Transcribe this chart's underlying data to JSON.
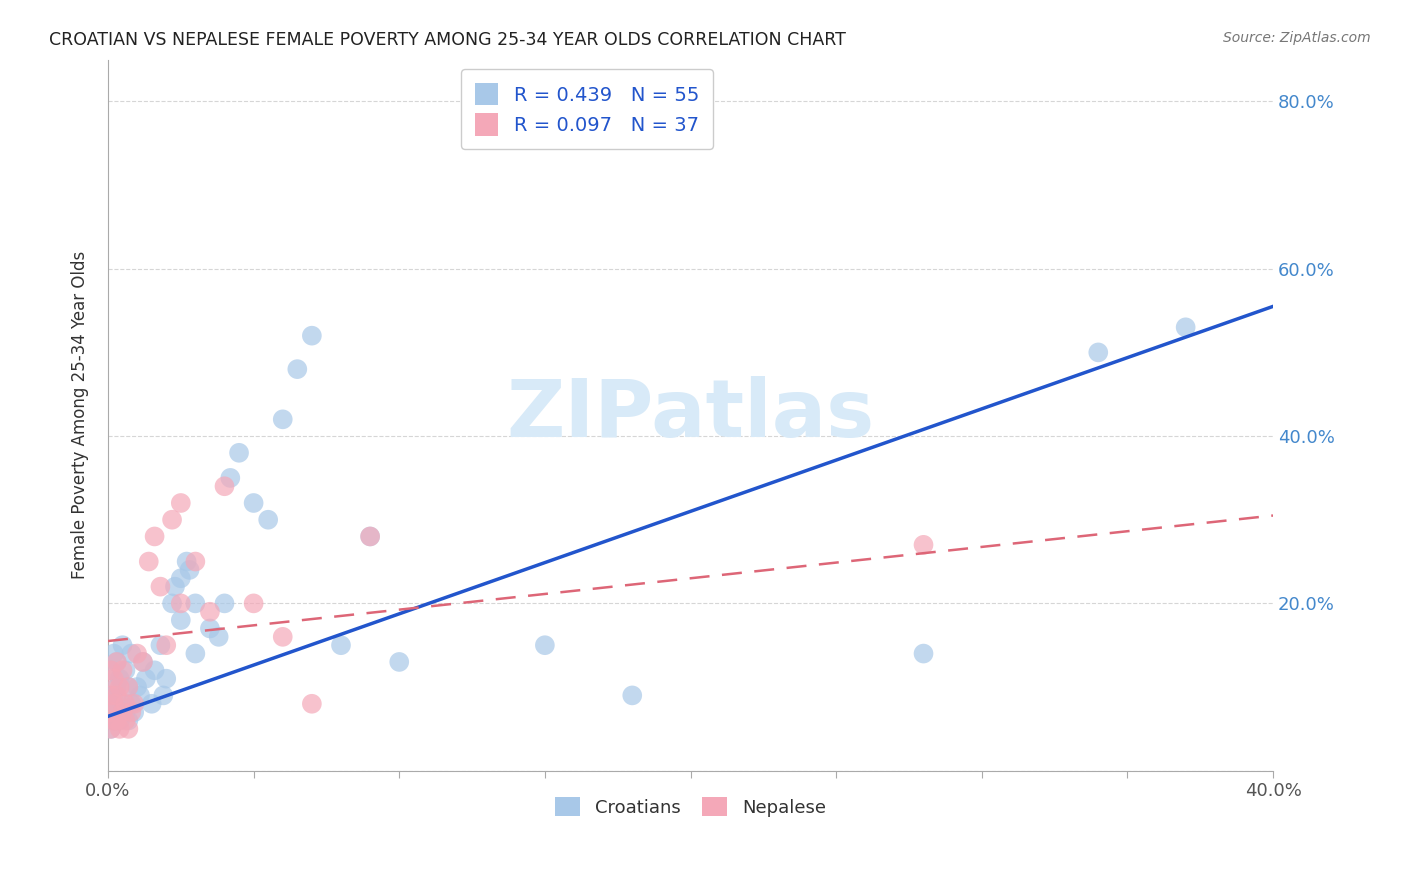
{
  "title": "CROATIAN VS NEPALESE FEMALE POVERTY AMONG 25-34 YEAR OLDS CORRELATION CHART",
  "source": "Source: ZipAtlas.com",
  "ylabel": "Female Poverty Among 25-34 Year Olds",
  "ytick_labels": [
    "",
    "20.0%",
    "40.0%",
    "60.0%",
    "80.0%"
  ],
  "yticks": [
    0.0,
    0.2,
    0.4,
    0.6,
    0.8
  ],
  "croatian_R": 0.439,
  "croatian_N": 55,
  "nepalese_R": 0.097,
  "nepalese_N": 37,
  "croatian_color": "#a8c8e8",
  "nepalese_color": "#f4a8b8",
  "trendline_croatian_color": "#2255cc",
  "trendline_nepalese_color": "#dd6677",
  "watermark_color": "#d8eaf8",
  "xmin": 0.0,
  "xmax": 0.4,
  "ymin": 0.0,
  "ymax": 0.85,
  "croatian_trend_x0": 0.0,
  "croatian_trend_y0": 0.065,
  "croatian_trend_x1": 0.4,
  "croatian_trend_y1": 0.555,
  "nepalese_trend_x0": 0.0,
  "nepalese_trend_y0": 0.155,
  "nepalese_trend_x1": 0.4,
  "nepalese_trend_y1": 0.305,
  "croatian_x": [
    0.001,
    0.001,
    0.001,
    0.002,
    0.002,
    0.002,
    0.003,
    0.003,
    0.003,
    0.004,
    0.004,
    0.005,
    0.005,
    0.006,
    0.006,
    0.007,
    0.007,
    0.008,
    0.008,
    0.009,
    0.01,
    0.011,
    0.012,
    0.013,
    0.015,
    0.016,
    0.018,
    0.019,
    0.02,
    0.022,
    0.023,
    0.025,
    0.025,
    0.027,
    0.028,
    0.03,
    0.03,
    0.035,
    0.038,
    0.04,
    0.042,
    0.045,
    0.05,
    0.055,
    0.06,
    0.065,
    0.07,
    0.08,
    0.09,
    0.1,
    0.15,
    0.18,
    0.28,
    0.34,
    0.37
  ],
  "croatian_y": [
    0.05,
    0.08,
    0.12,
    0.06,
    0.09,
    0.14,
    0.07,
    0.1,
    0.13,
    0.06,
    0.11,
    0.08,
    0.15,
    0.07,
    0.12,
    0.06,
    0.1,
    0.08,
    0.14,
    0.07,
    0.1,
    0.09,
    0.13,
    0.11,
    0.08,
    0.12,
    0.15,
    0.09,
    0.11,
    0.2,
    0.22,
    0.18,
    0.23,
    0.25,
    0.24,
    0.2,
    0.14,
    0.17,
    0.16,
    0.2,
    0.35,
    0.38,
    0.32,
    0.3,
    0.42,
    0.48,
    0.52,
    0.15,
    0.28,
    0.13,
    0.15,
    0.09,
    0.14,
    0.5,
    0.53
  ],
  "nepalese_x": [
    0.001,
    0.001,
    0.001,
    0.001,
    0.002,
    0.002,
    0.002,
    0.003,
    0.003,
    0.003,
    0.004,
    0.004,
    0.005,
    0.005,
    0.006,
    0.006,
    0.007,
    0.007,
    0.008,
    0.009,
    0.01,
    0.012,
    0.014,
    0.016,
    0.018,
    0.02,
    0.022,
    0.025,
    0.025,
    0.03,
    0.035,
    0.04,
    0.05,
    0.06,
    0.07,
    0.09,
    0.28
  ],
  "nepalese_y": [
    0.05,
    0.07,
    0.09,
    0.12,
    0.06,
    0.08,
    0.11,
    0.06,
    0.09,
    0.13,
    0.05,
    0.1,
    0.07,
    0.12,
    0.06,
    0.08,
    0.05,
    0.1,
    0.07,
    0.08,
    0.14,
    0.13,
    0.25,
    0.28,
    0.22,
    0.15,
    0.3,
    0.32,
    0.2,
    0.25,
    0.19,
    0.34,
    0.2,
    0.16,
    0.08,
    0.28,
    0.27
  ]
}
